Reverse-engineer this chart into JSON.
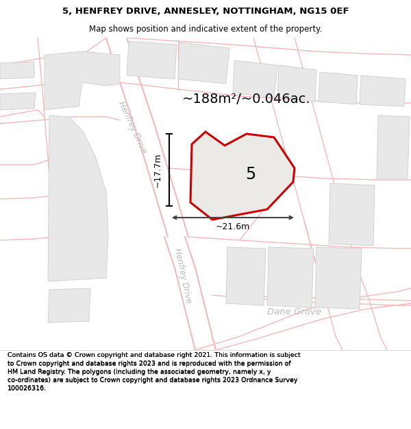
{
  "title_line1": "5, HENFREY DRIVE, ANNESLEY, NOTTINGHAM, NG15 0EF",
  "title_line2": "Map shows position and indicative extent of the property.",
  "area_text": "~188m²/~0.046ac.",
  "label_5": "5",
  "dim_height": "~17.7m",
  "dim_width": "~21.6m",
  "road_label1": "Henfrey Drive",
  "road_label2": "Henfrey Drive",
  "road_label3": "Dane Grove",
  "footer_lines": [
    "Contains OS data © Crown copyright and database right 2021. This information is subject to Crown copyright and database rights 2023 and is reproduced with the permission of",
    "HM Land Registry. The polygons (including the associated geometry, namely x, y co-ordinates) are subject to Crown copyright and database rights 2023 Ordnance Survey",
    "100026316."
  ],
  "map_bg": "#ffffff",
  "road_color": "#f5b8b8",
  "road_color2": "#f0c0c0",
  "block_fill": "#e8e8e8",
  "block_edge": "#cccccc",
  "property_fill": "#e8e6e3",
  "property_edge": "#cc0000",
  "arrow_color": "#444444",
  "road_band_color": "#f0f0f0",
  "road_band_edge": "#e0c0c0"
}
